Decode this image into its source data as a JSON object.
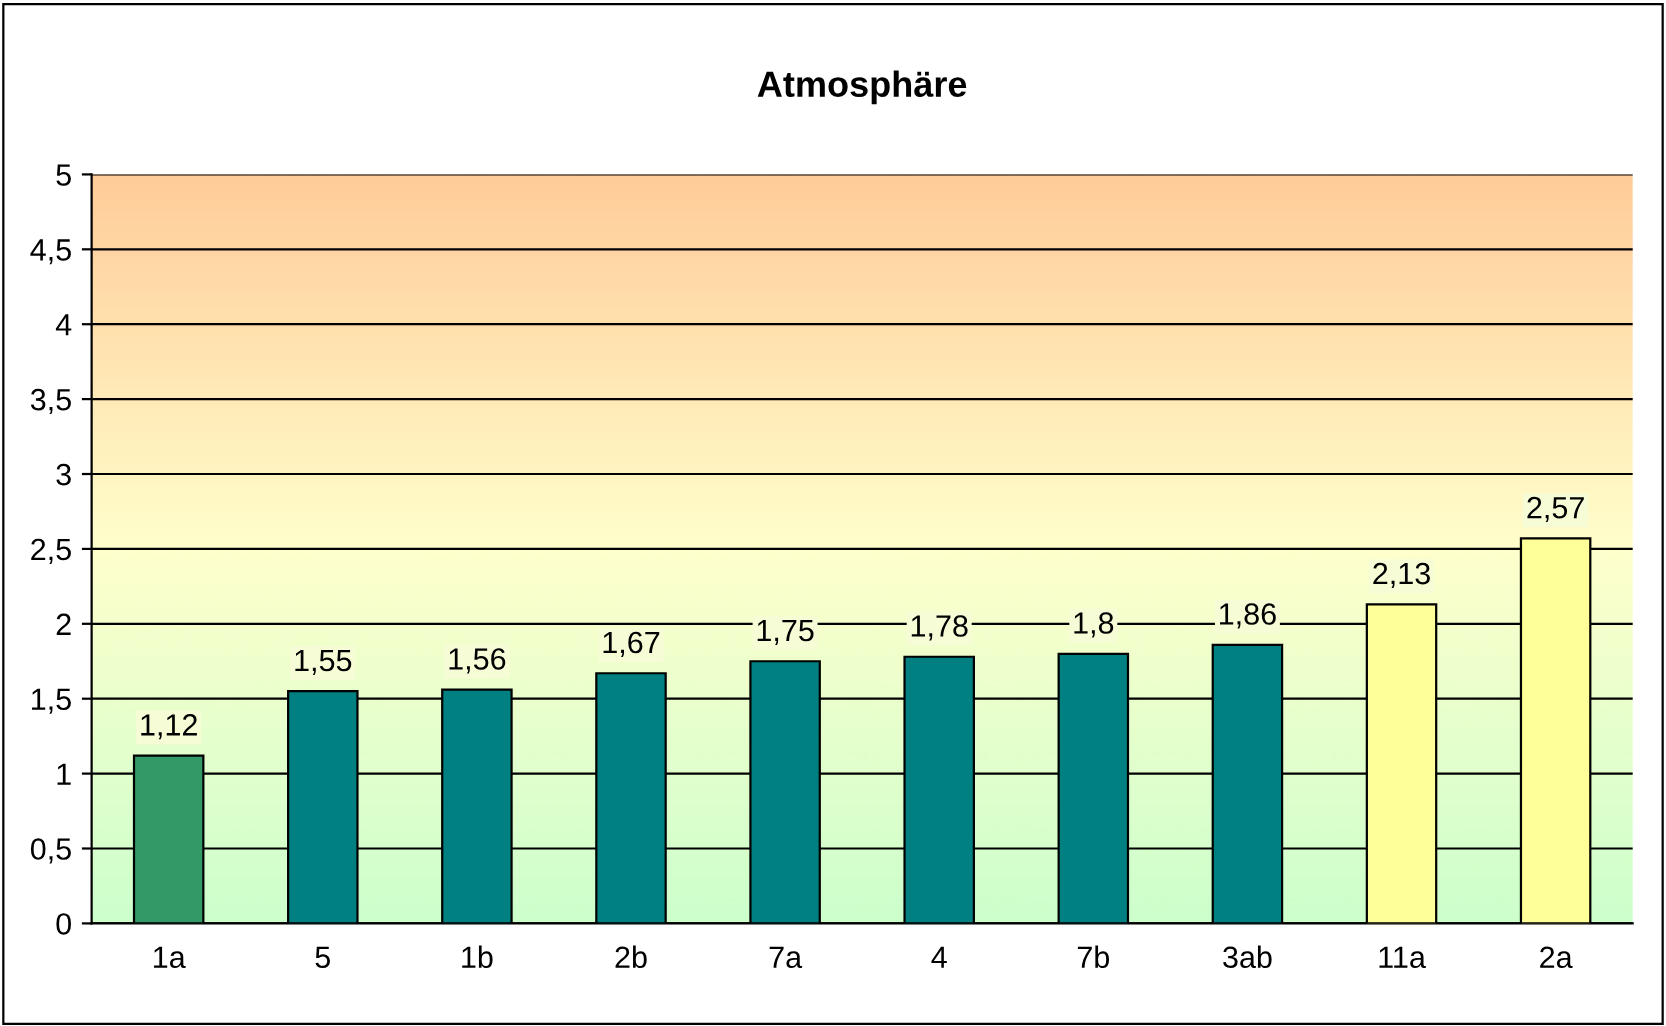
{
  "chart_data": {
    "type": "bar",
    "title": "Atmosphäre",
    "categories": [
      "1a",
      "5",
      "1b",
      "2b",
      "7a",
      "4",
      "7b",
      "3ab",
      "11a",
      "2a"
    ],
    "values": [
      1.12,
      1.55,
      1.56,
      1.67,
      1.75,
      1.78,
      1.8,
      1.86,
      2.13,
      2.57
    ],
    "value_labels": [
      "1,12",
      "1,55",
      "1,56",
      "1,67",
      "1,75",
      "1,78",
      "1,8",
      "1,86",
      "2,13",
      "2,57"
    ],
    "colors": [
      "#339966",
      "#008080",
      "#008080",
      "#008080",
      "#008080",
      "#008080",
      "#008080",
      "#008080",
      "#ffff99",
      "#ffff99"
    ],
    "ylim": [
      0,
      5
    ],
    "yticks": [
      0,
      {
        "value": 0.5,
        "label": "0,5"
      },
      1,
      {
        "value": 1.5,
        "label": "1,5"
      },
      2,
      {
        "value": 2.5,
        "label": "2,5"
      },
      3,
      {
        "value": 3.5,
        "label": "3,5"
      },
      4,
      {
        "value": 4.5,
        "label": "4,5"
      },
      5
    ],
    "grid": "y"
  }
}
